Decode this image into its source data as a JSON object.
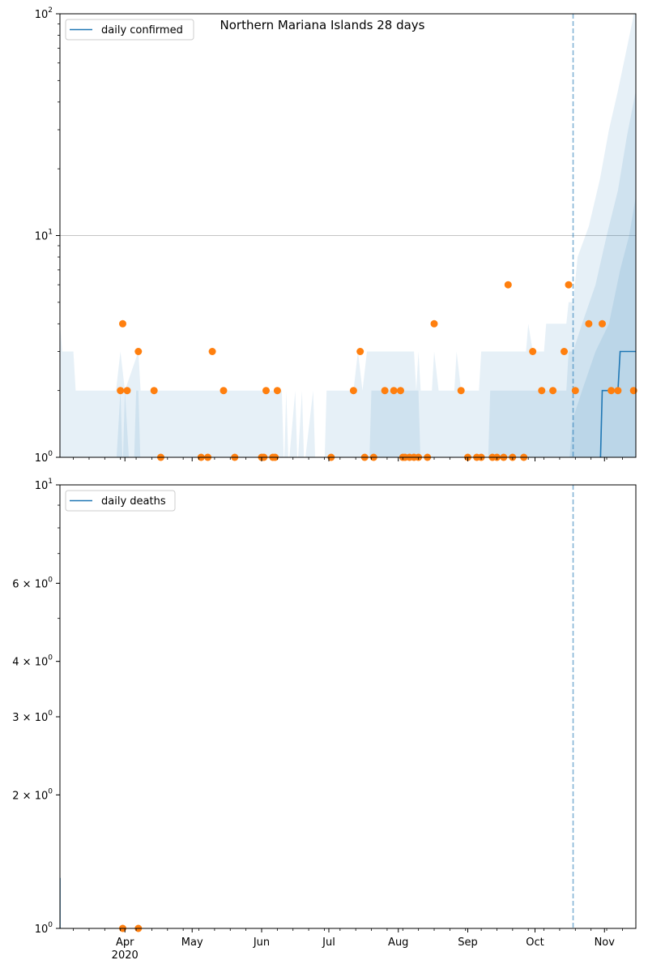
{
  "chart_data": [
    {
      "type": "line",
      "title": "Northern Mariana Islands 28 days",
      "yscale": "log",
      "ylim": [
        1,
        100
      ],
      "xlim": [
        "2020-03-03",
        "2020-11-15"
      ],
      "y_tick_labels": [
        {
          "value": 1,
          "label": "10",
          "exp": "0"
        },
        {
          "value": 10,
          "label": "10",
          "exp": "1"
        },
        {
          "value": 100,
          "label": "10",
          "exp": "2"
        }
      ],
      "gridlines_y": [
        10
      ],
      "legend": {
        "position": "top-left",
        "entries": [
          "daily confirmed"
        ]
      },
      "colors": {
        "line": "#1f77b4",
        "points": "#ff7f0e",
        "band": "#1f77b4",
        "vline": "#1f77b4"
      },
      "forecast_start": "2020-10-18",
      "series": [
        {
          "name": "daily confirmed",
          "kind": "line",
          "points": [
            [
              "2020-10-18",
              0.8
            ],
            [
              "2020-10-30",
              0.8
            ],
            [
              "2020-10-31",
              2
            ],
            [
              "2020-11-07",
              2
            ],
            [
              "2020-11-08",
              3
            ],
            [
              "2020-11-15",
              3
            ]
          ]
        },
        {
          "kind": "scatter",
          "points": [
            [
              "2020-03-30",
              2
            ],
            [
              "2020-03-31",
              4
            ],
            [
              "2020-04-02",
              2
            ],
            [
              "2020-04-07",
              3
            ],
            [
              "2020-04-14",
              2
            ],
            [
              "2020-04-17",
              1
            ],
            [
              "2020-05-05",
              1
            ],
            [
              "2020-05-08",
              1
            ],
            [
              "2020-05-10",
              3
            ],
            [
              "2020-05-15",
              2
            ],
            [
              "2020-05-20",
              1
            ],
            [
              "2020-06-01",
              1
            ],
            [
              "2020-06-02",
              1
            ],
            [
              "2020-06-03",
              2
            ],
            [
              "2020-06-06",
              1
            ],
            [
              "2020-06-07",
              1
            ],
            [
              "2020-06-08",
              2
            ],
            [
              "2020-07-02",
              1
            ],
            [
              "2020-07-12",
              2
            ],
            [
              "2020-07-15",
              3
            ],
            [
              "2020-07-17",
              1
            ],
            [
              "2020-07-21",
              1
            ],
            [
              "2020-07-26",
              2
            ],
            [
              "2020-07-30",
              2
            ],
            [
              "2020-08-02",
              2
            ],
            [
              "2020-08-03",
              1
            ],
            [
              "2020-08-04",
              1
            ],
            [
              "2020-08-06",
              1
            ],
            [
              "2020-08-08",
              1
            ],
            [
              "2020-08-10",
              1
            ],
            [
              "2020-08-14",
              1
            ],
            [
              "2020-08-17",
              4
            ],
            [
              "2020-08-29",
              2
            ],
            [
              "2020-09-01",
              1
            ],
            [
              "2020-09-05",
              1
            ],
            [
              "2020-09-07",
              1
            ],
            [
              "2020-09-12",
              1
            ],
            [
              "2020-09-14",
              1
            ],
            [
              "2020-09-17",
              1
            ],
            [
              "2020-09-19",
              6
            ],
            [
              "2020-09-21",
              1
            ],
            [
              "2020-09-26",
              1
            ],
            [
              "2020-09-30",
              3
            ],
            [
              "2020-10-04",
              2
            ],
            [
              "2020-10-09",
              2
            ],
            [
              "2020-10-14",
              3
            ],
            [
              "2020-10-16",
              6
            ],
            [
              "2020-10-19",
              2
            ],
            [
              "2020-10-25",
              4
            ],
            [
              "2020-10-31",
              4
            ],
            [
              "2020-11-04",
              2
            ],
            [
              "2020-11-07",
              2
            ],
            [
              "2020-11-14",
              2
            ]
          ]
        }
      ],
      "bands": [
        {
          "opacity": 0.11,
          "upper": [
            [
              "2020-03-03",
              4
            ],
            [
              "2020-03-04",
              3
            ],
            [
              "2020-03-09",
              3
            ],
            [
              "2020-03-10",
              2
            ],
            [
              "2020-03-28",
              2
            ],
            [
              "2020-03-30",
              3
            ],
            [
              "2020-04-01",
              2
            ],
            [
              "2020-04-07",
              3
            ],
            [
              "2020-04-08",
              2
            ],
            [
              "2020-05-31",
              2
            ],
            [
              "2020-06-07",
              2
            ],
            [
              "2020-06-10",
              2
            ],
            [
              "2020-06-11",
              0.9
            ],
            [
              "2020-06-12",
              2
            ],
            [
              "2020-06-13",
              0.9
            ],
            [
              "2020-06-16",
              2
            ],
            [
              "2020-06-17",
              0.9
            ],
            [
              "2020-06-19",
              2
            ],
            [
              "2020-06-20",
              0.9
            ],
            [
              "2020-06-24",
              2
            ],
            [
              "2020-06-25",
              0.9
            ],
            [
              "2020-06-29",
              0.9
            ],
            [
              "2020-06-30",
              2
            ],
            [
              "2020-07-12",
              2
            ],
            [
              "2020-07-14",
              3
            ],
            [
              "2020-07-16",
              2
            ],
            [
              "2020-07-18",
              3
            ],
            [
              "2020-08-08",
              3
            ],
            [
              "2020-08-09",
              2
            ],
            [
              "2020-08-10",
              3
            ],
            [
              "2020-08-11",
              2
            ],
            [
              "2020-08-16",
              2
            ],
            [
              "2020-08-17",
              3
            ],
            [
              "2020-08-19",
              2
            ],
            [
              "2020-08-26",
              2
            ],
            [
              "2020-08-27",
              3
            ],
            [
              "2020-08-29",
              2
            ],
            [
              "2020-09-06",
              2
            ],
            [
              "2020-09-07",
              3
            ],
            [
              "2020-09-09",
              3
            ],
            [
              "2020-09-27",
              3
            ],
            [
              "2020-09-28",
              4
            ],
            [
              "2020-09-30",
              3
            ],
            [
              "2020-10-05",
              3
            ],
            [
              "2020-10-06",
              4
            ],
            [
              "2020-10-15",
              4
            ],
            [
              "2020-10-16",
              5
            ],
            [
              "2020-10-18",
              5
            ],
            [
              "2020-10-20",
              8
            ],
            [
              "2020-10-25",
              11
            ],
            [
              "2020-10-30",
              18
            ],
            [
              "2020-11-03",
              30
            ],
            [
              "2020-11-07",
              45
            ],
            [
              "2020-11-11",
              70
            ],
            [
              "2020-11-15",
              110
            ]
          ],
          "lower": [
            [
              "2020-03-03",
              0.8
            ],
            [
              "2020-11-15",
              0.8
            ]
          ]
        },
        {
          "opacity": 0.11,
          "upper": [
            [
              "2020-03-28",
              0.9
            ],
            [
              "2020-03-30",
              2
            ],
            [
              "2020-03-31",
              0.9
            ],
            [
              "2020-04-01",
              2
            ],
            [
              "2020-04-03",
              0.9
            ],
            [
              "2020-04-05",
              0.9
            ],
            [
              "2020-04-06",
              2
            ],
            [
              "2020-04-07",
              2
            ],
            [
              "2020-04-08",
              0.9
            ],
            [
              "2020-07-19",
              0.9
            ],
            [
              "2020-07-20",
              2
            ],
            [
              "2020-08-10",
              2
            ],
            [
              "2020-08-11",
              0.9
            ],
            [
              "2020-09-10",
              0.9
            ],
            [
              "2020-09-11",
              2
            ],
            [
              "2020-10-15",
              2
            ],
            [
              "2020-10-16",
              3
            ],
            [
              "2020-10-18",
              3
            ],
            [
              "2020-10-22",
              4
            ],
            [
              "2020-10-28",
              6
            ],
            [
              "2020-11-02",
              10
            ],
            [
              "2020-11-07",
              16
            ],
            [
              "2020-11-11",
              28
            ],
            [
              "2020-11-15",
              45
            ]
          ],
          "lower": [
            [
              "2020-03-03",
              0.8
            ],
            [
              "2020-11-15",
              0.8
            ]
          ]
        },
        {
          "opacity": 0.11,
          "upper": [
            [
              "2020-10-16",
              0.9
            ],
            [
              "2020-10-18",
              1.5
            ],
            [
              "2020-10-22",
              2
            ],
            [
              "2020-10-28",
              3
            ],
            [
              "2020-11-03",
              4
            ],
            [
              "2020-11-08",
              7
            ],
            [
              "2020-11-12",
              10
            ],
            [
              "2020-11-15",
              15
            ]
          ],
          "lower": [
            [
              "2020-03-03",
              0.8
            ],
            [
              "2020-11-15",
              0.8
            ]
          ]
        }
      ]
    },
    {
      "type": "line",
      "yscale": "log",
      "ylim": [
        1,
        10
      ],
      "xlim": [
        "2020-03-03",
        "2020-11-15"
      ],
      "y_tick_labels": [
        {
          "value": 1,
          "label": "10",
          "exp": "0"
        },
        {
          "value": 2,
          "label": "2 × 10",
          "exp": "0"
        },
        {
          "value": 3,
          "label": "3 × 10",
          "exp": "0"
        },
        {
          "value": 4,
          "label": "4 × 10",
          "exp": "0"
        },
        {
          "value": 6,
          "label": "6 × 10",
          "exp": "0"
        },
        {
          "value": 10,
          "label": "10",
          "exp": "1"
        }
      ],
      "x_tick_labels": [
        {
          "date": "2020-04-01",
          "label": "Apr",
          "sublabel": "2020"
        },
        {
          "date": "2020-05-01",
          "label": "May"
        },
        {
          "date": "2020-06-01",
          "label": "Jun"
        },
        {
          "date": "2020-07-01",
          "label": "Jul"
        },
        {
          "date": "2020-08-01",
          "label": "Aug"
        },
        {
          "date": "2020-09-01",
          "label": "Sep"
        },
        {
          "date": "2020-10-01",
          "label": "Oct"
        },
        {
          "date": "2020-11-01",
          "label": "Nov"
        }
      ],
      "legend": {
        "position": "top-left",
        "entries": [
          "daily deaths"
        ]
      },
      "colors": {
        "line": "#1f77b4",
        "points": "#ff7f0e",
        "vline": "#1f77b4"
      },
      "forecast_start": "2020-10-18",
      "series": [
        {
          "name": "daily deaths",
          "kind": "line",
          "points": [
            [
              "2020-03-03",
              1.3
            ],
            [
              "2020-03-03",
              0.8
            ]
          ]
        },
        {
          "kind": "scatter",
          "points": [
            [
              "2020-03-31",
              1
            ],
            [
              "2020-04-07",
              1
            ]
          ]
        }
      ]
    }
  ]
}
